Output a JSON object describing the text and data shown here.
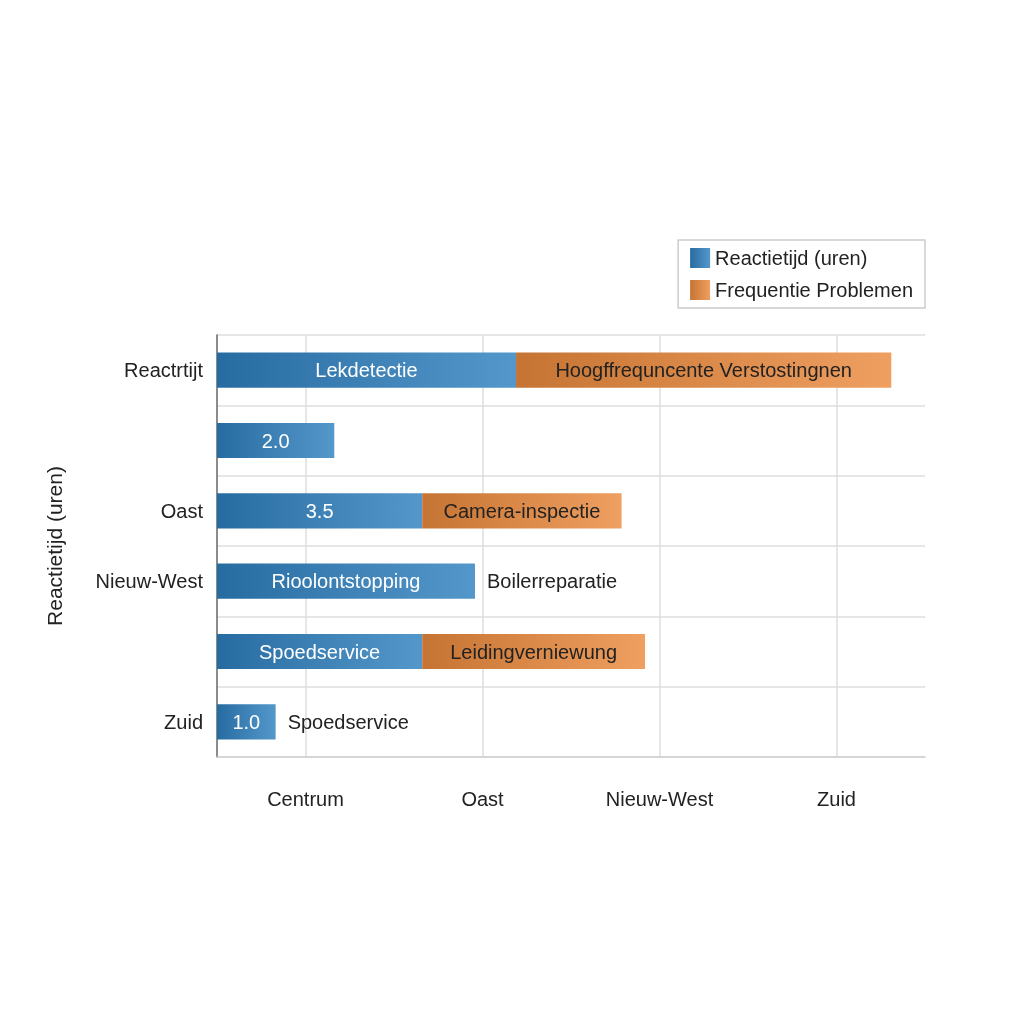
{
  "chart_data": {
    "type": "bar",
    "orientation": "horizontal",
    "stacked": true,
    "ylabel": "Reactietijd (uren)",
    "categories": [
      "Reactrtijt",
      null,
      "Oast",
      "Nieuw-West",
      null,
      "Zuid"
    ],
    "series": [
      {
        "name": "Reactietijd (uren)",
        "color": "#2f80c0",
        "values": [
          5.1,
          2.0,
          3.5,
          4.4,
          3.5,
          1.0
        ],
        "value_labels": [
          "Lekdetectie",
          "2.0",
          "3.5",
          "Rioolontstopping",
          "Spoedservice",
          "1.0"
        ]
      },
      {
        "name": "Frequentie Problemen",
        "color": "#ec8a3d",
        "values": [
          6.4,
          null,
          3.4,
          null,
          3.8,
          null
        ],
        "value_labels": [
          "Hoogffrequncente Verstostingnen",
          null,
          "Camera-inspectie",
          null,
          "Leidingverniewung",
          null
        ]
      }
    ],
    "annotations": [
      "Centrum",
      "Oast",
      "Nieuw-West",
      "Zuid",
      {
        "text": "Boilerreparatie",
        "x": 4.4,
        "y": "Nieuw-West"
      },
      {
        "text": "Spoedservice",
        "x": 1.0,
        "y": "Zuid"
      }
    ],
    "legend": "top right",
    "grid": true
  }
}
